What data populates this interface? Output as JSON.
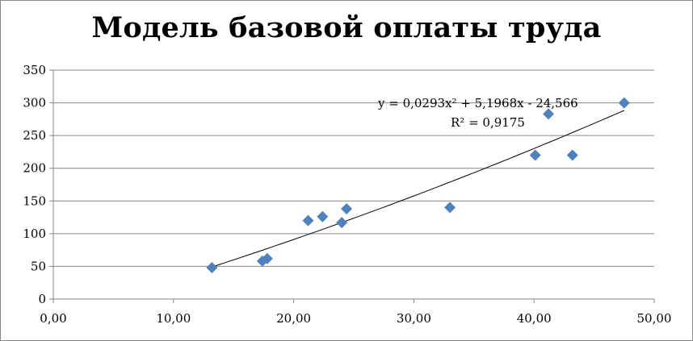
{
  "chart_data": {
    "type": "scatter",
    "title": "Модель базовой оплаты труда",
    "xlabel": "",
    "ylabel": "",
    "xlim": [
      0,
      50
    ],
    "ylim": [
      0,
      350
    ],
    "x_ticks": [
      "0,00",
      "10,00",
      "20,00",
      "30,00",
      "40,00",
      "50,00"
    ],
    "y_ticks": [
      "0",
      "50",
      "100",
      "150",
      "200",
      "250",
      "300",
      "350"
    ],
    "grid": "horizontal",
    "legend": "none",
    "marker_color": "#4F81BD",
    "trendline_color": "#000000",
    "series": [
      {
        "points": [
          {
            "x": 13.2,
            "y": 48
          },
          {
            "x": 17.4,
            "y": 58
          },
          {
            "x": 17.8,
            "y": 62
          },
          {
            "x": 21.2,
            "y": 120
          },
          {
            "x": 22.4,
            "y": 126
          },
          {
            "x": 24.0,
            "y": 117
          },
          {
            "x": 24.4,
            "y": 138
          },
          {
            "x": 33.0,
            "y": 140
          },
          {
            "x": 40.1,
            "y": 220
          },
          {
            "x": 41.2,
            "y": 283
          },
          {
            "x": 43.2,
            "y": 220
          },
          {
            "x": 47.5,
            "y": 300
          }
        ]
      }
    ],
    "trendline": {
      "type": "polynomial",
      "coefficients": {
        "a": 0.0293,
        "b": 5.1968,
        "c": -24.566
      },
      "x_range": [
        13.2,
        47.5
      ],
      "equation_text": "y = 0,0293x² + 5,1968x - 24,566",
      "r2_text": "R² = 0,9175"
    }
  }
}
